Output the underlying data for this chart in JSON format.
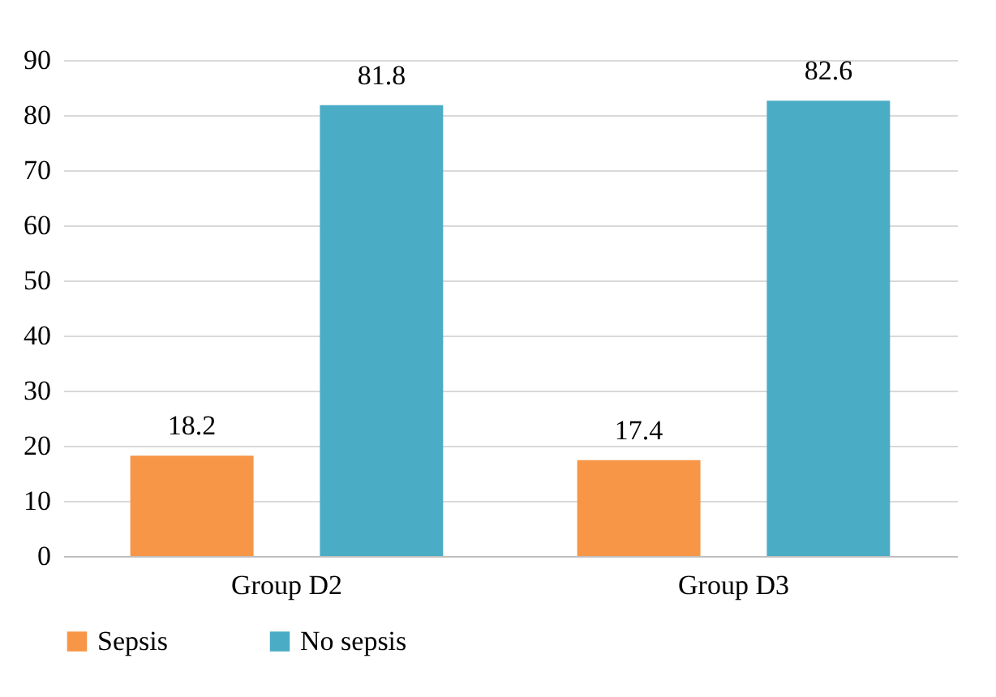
{
  "chart_data": {
    "type": "bar",
    "categories": [
      "Group D2",
      "Group D3"
    ],
    "series": [
      {
        "name": "Sepsis",
        "color": "#f79646",
        "values": [
          18.2,
          17.4
        ]
      },
      {
        "name": "No sepsis",
        "color": "#4bacc6",
        "values": [
          81.8,
          82.6
        ]
      }
    ],
    "ylim": [
      0,
      90
    ],
    "yticks": [
      0,
      10,
      20,
      30,
      40,
      50,
      60,
      70,
      80,
      90
    ],
    "grid": "y",
    "legend": "bottom",
    "data_labels": true
  }
}
